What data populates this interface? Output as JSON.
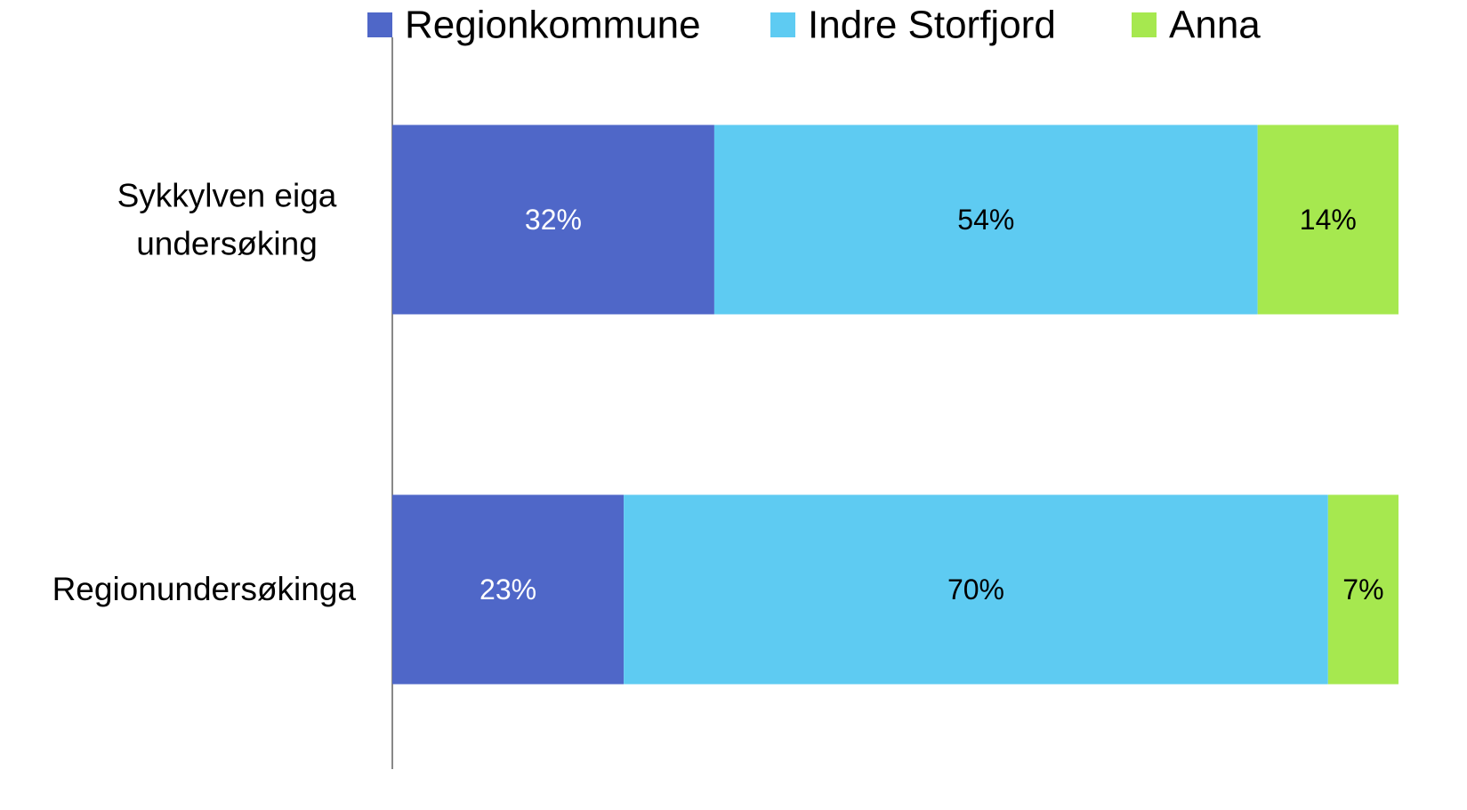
{
  "chart_data": {
    "type": "stacked_bar_horizontal",
    "categories": [
      "Sykkylven eiga undersøking",
      "Regionundersøkinga"
    ],
    "series": [
      {
        "name": "Regionkommune",
        "color": "#4f67c8",
        "label_color": "#ffffff",
        "values": [
          32,
          23
        ],
        "value_labels": [
          "32%",
          "23%"
        ]
      },
      {
        "name": "Indre Storfjord",
        "color": "#5ecbf2",
        "label_color": "#000000",
        "values": [
          54,
          70
        ],
        "value_labels": [
          "54%",
          "70%"
        ]
      },
      {
        "name": "Anna",
        "color": "#a6e84f",
        "label_color": "#000000",
        "values": [
          14,
          7
        ],
        "value_labels": [
          "14%",
          "7%"
        ]
      }
    ],
    "xlim": [
      0,
      100
    ],
    "legend": "top"
  }
}
